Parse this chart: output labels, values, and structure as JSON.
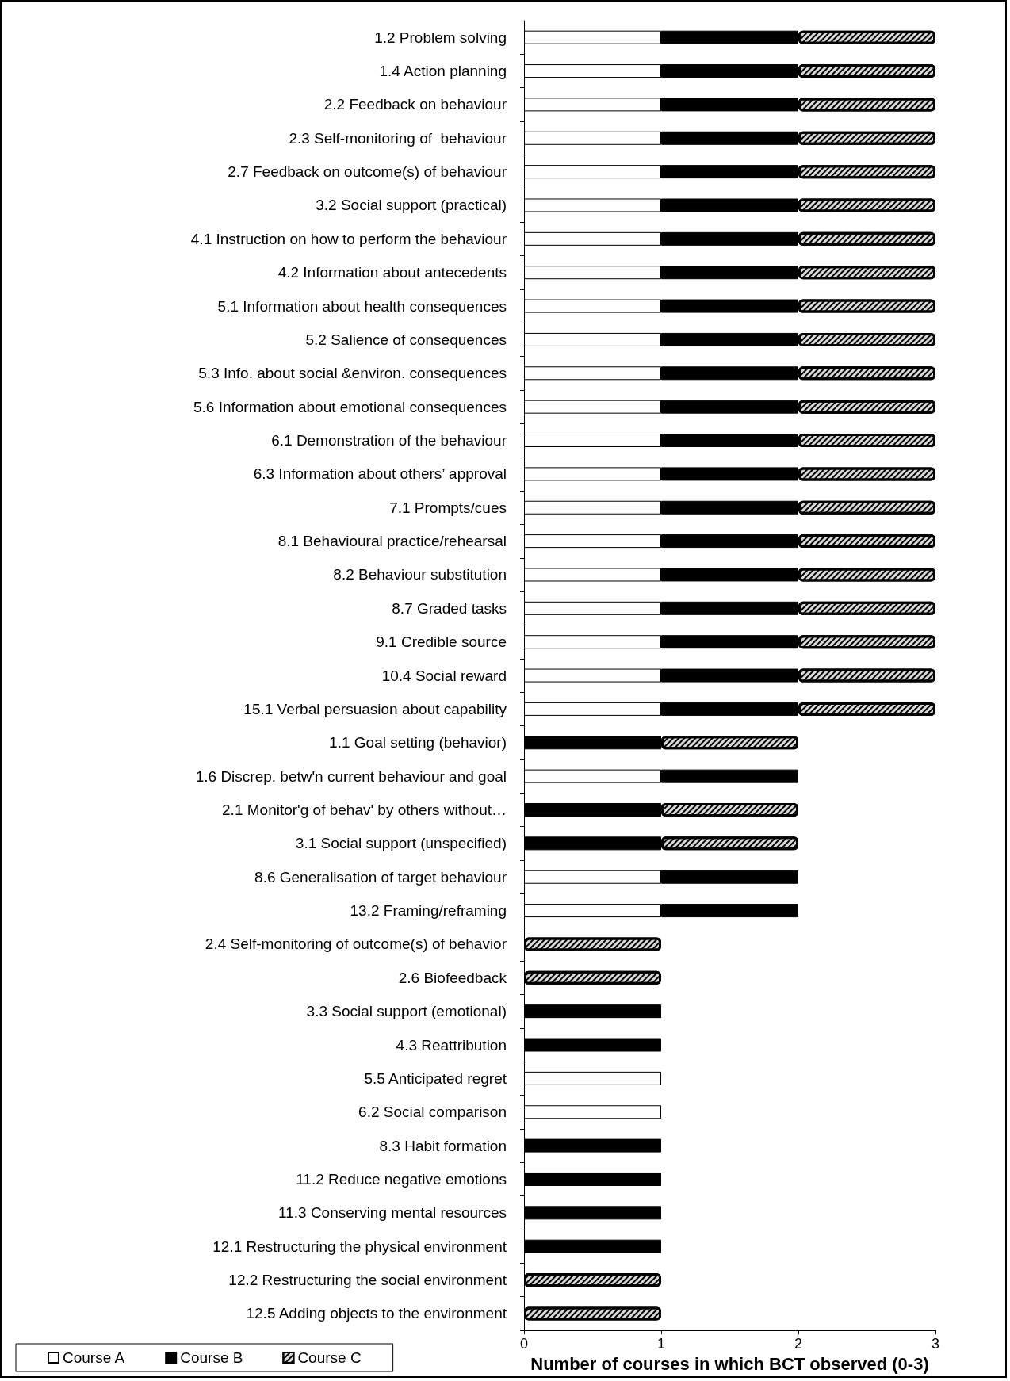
{
  "chart_data": {
    "type": "bar",
    "orientation": "horizontal",
    "stacked": true,
    "xlabel": "Number of courses in which BCT observed (0-3)",
    "categories": [
      "1.2 Problem solving",
      "1.4 Action planning",
      "2.2 Feedback on behaviour",
      "2.3 Self-monitoring of  behaviour",
      "2.7 Feedback on outcome(s) of behaviour",
      "3.2 Social support (practical)",
      "4.1 Instruction on how to perform the behaviour",
      "4.2 Information about antecedents",
      "5.1 Information about health consequences",
      "5.2 Salience of consequences",
      "5.3 Info. about social &environ. consequences",
      "5.6 Information about emotional consequences",
      "6.1 Demonstration of the behaviour",
      "6.3 Information about others’ approval",
      "7.1 Prompts/cues",
      "8.1 Behavioural practice/rehearsal",
      "8.2 Behaviour substitution",
      "8.7 Graded tasks",
      "9.1 Credible source",
      "10.4 Social reward",
      "15.1 Verbal persuasion about capability",
      "1.1 Goal setting (behavior)",
      "1.6 Discrep. betw'n current behaviour and goal",
      "2.1 Monitor'g of behav' by others without…",
      "3.1 Social support (unspecified)",
      "8.6 Generalisation of target behaviour",
      "13.2 Framing/reframing",
      "2.4 Self-monitoring of outcome(s) of behavior",
      "2.6 Biofeedback",
      "3.3 Social support (emotional)",
      "4.3 Reattribution",
      "5.5 Anticipated regret",
      "6.2 Social comparison",
      "8.3 Habit formation",
      "11.2 Reduce negative emotions",
      "11.3 Conserving mental resources",
      "12.1 Restructuring the physical environment",
      "12.2 Restructuring the social environment",
      "12.5 Adding objects to the environment"
    ],
    "series": [
      {
        "name": "Course A",
        "color": "#ffffff",
        "values": [
          1,
          1,
          1,
          1,
          1,
          1,
          1,
          1,
          1,
          1,
          1,
          1,
          1,
          1,
          1,
          1,
          1,
          1,
          1,
          1,
          1,
          0,
          1,
          0,
          0,
          1,
          1,
          0,
          0,
          0,
          0,
          1,
          1,
          0,
          0,
          0,
          0,
          0,
          0
        ]
      },
      {
        "name": "Course B",
        "color": "#000000",
        "values": [
          1,
          1,
          1,
          1,
          1,
          1,
          1,
          1,
          1,
          1,
          1,
          1,
          1,
          1,
          1,
          1,
          1,
          1,
          1,
          1,
          1,
          1,
          1,
          1,
          1,
          1,
          1,
          0,
          0,
          1,
          1,
          0,
          0,
          1,
          1,
          1,
          1,
          0,
          0
        ]
      },
      {
        "name": "Course C",
        "color": "#d9d9d9",
        "values": [
          1,
          1,
          1,
          1,
          1,
          1,
          1,
          1,
          1,
          1,
          1,
          1,
          1,
          1,
          1,
          1,
          1,
          1,
          1,
          1,
          1,
          1,
          0,
          1,
          1,
          0,
          0,
          1,
          1,
          0,
          0,
          0,
          0,
          0,
          0,
          0,
          0,
          1,
          1
        ]
      }
    ],
    "xlim": [
      0,
      3
    ],
    "xticks": [
      0,
      1,
      2,
      3
    ],
    "grid": false,
    "legend": "bottom left"
  }
}
